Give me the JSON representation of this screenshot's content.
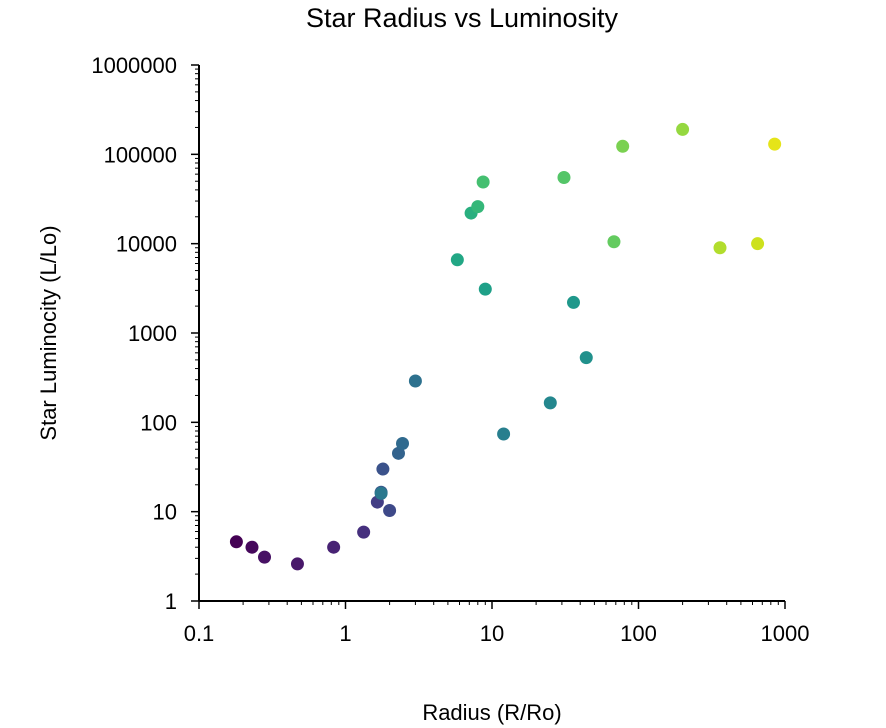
{
  "chart_data": {
    "type": "scatter",
    "title": "Star Radius vs Luminosity",
    "xlabel": "Radius (R/Ro)",
    "ylabel": "Star Luminocity (L/Lo)",
    "x_scale": "log",
    "y_scale": "log",
    "xlim": [
      0.1,
      1000
    ],
    "ylim": [
      1,
      1000000
    ],
    "x_ticks": [
      "0.1",
      "1",
      "10",
      "100",
      "1000"
    ],
    "y_ticks": [
      "1",
      "10",
      "100",
      "1000",
      "10000",
      "100000",
      "1000000"
    ],
    "grid": false,
    "color_scale": "viridis",
    "points": [
      {
        "x": 0.18,
        "y": 4.6,
        "color": "#440154"
      },
      {
        "x": 0.23,
        "y": 4.0,
        "color": "#46085c"
      },
      {
        "x": 0.28,
        "y": 3.1,
        "color": "#471164"
      },
      {
        "x": 0.47,
        "y": 2.6,
        "color": "#48186a"
      },
      {
        "x": 0.83,
        "y": 4.0,
        "color": "#482374"
      },
      {
        "x": 1.33,
        "y": 5.9,
        "color": "#46307e"
      },
      {
        "x": 1.65,
        "y": 12.8,
        "color": "#433e85"
      },
      {
        "x": 2.0,
        "y": 10.3,
        "color": "#3e4989"
      },
      {
        "x": 1.8,
        "y": 30.0,
        "color": "#3b528b"
      },
      {
        "x": 1.75,
        "y": 16.5,
        "color": "#38598c"
      },
      {
        "x": 2.3,
        "y": 45.0,
        "color": "#33638d"
      },
      {
        "x": 2.45,
        "y": 58.0,
        "color": "#306a8e"
      },
      {
        "x": 3.0,
        "y": 290.0,
        "color": "#2d718e"
      },
      {
        "x": 1.75,
        "y": 16.0,
        "color": "#2a788e"
      },
      {
        "x": 12.0,
        "y": 74.0,
        "color": "#277f8e"
      },
      {
        "x": 25.0,
        "y": 165.0,
        "color": "#24878e"
      },
      {
        "x": 44.0,
        "y": 530.0,
        "color": "#21918c"
      },
      {
        "x": 36.0,
        "y": 2200.0,
        "color": "#1f988b"
      },
      {
        "x": 9.0,
        "y": 3100.0,
        "color": "#1fa088"
      },
      {
        "x": 5.8,
        "y": 6600.0,
        "color": "#22a785"
      },
      {
        "x": 7.2,
        "y": 22000.0,
        "color": "#29af7f"
      },
      {
        "x": 8.0,
        "y": 26000.0,
        "color": "#35b779"
      },
      {
        "x": 8.7,
        "y": 49000.0,
        "color": "#44bf70"
      },
      {
        "x": 31.0,
        "y": 55000.0,
        "color": "#54c568"
      },
      {
        "x": 68.0,
        "y": 10500.0,
        "color": "#63cb5f"
      },
      {
        "x": 78.0,
        "y": 123000.0,
        "color": "#7ad151"
      },
      {
        "x": 200.0,
        "y": 190000.0,
        "color": "#95d840"
      },
      {
        "x": 360.0,
        "y": 9000.0,
        "color": "#b2dd2d"
      },
      {
        "x": 650.0,
        "y": 10000.0,
        "color": "#cde11d"
      },
      {
        "x": 850.0,
        "y": 130000.0,
        "color": "#e5e419"
      }
    ]
  }
}
